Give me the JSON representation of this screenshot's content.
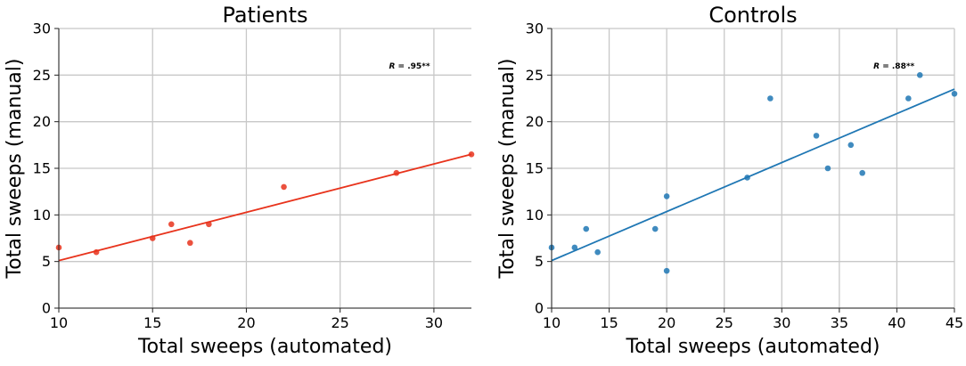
{
  "chart_data": [
    {
      "type": "scatter",
      "title": "Patients",
      "xlabel": "Total sweeps (automated)",
      "ylabel": "Total sweeps (manual)",
      "xlim": [
        10,
        32
      ],
      "ylim": [
        0,
        30
      ],
      "xticks": [
        10,
        15,
        20,
        25,
        30
      ],
      "yticks": [
        0,
        5,
        10,
        15,
        20,
        25,
        30
      ],
      "grid": true,
      "annotation": "R = .95**",
      "color": "#e8331c",
      "points": [
        {
          "x": 10,
          "y": 6.5
        },
        {
          "x": 12,
          "y": 6
        },
        {
          "x": 15,
          "y": 7.5
        },
        {
          "x": 16,
          "y": 9
        },
        {
          "x": 17,
          "y": 7
        },
        {
          "x": 18,
          "y": 9
        },
        {
          "x": 22,
          "y": 13
        },
        {
          "x": 28,
          "y": 14.5
        },
        {
          "x": 32,
          "y": 16.5
        }
      ],
      "fit_line": [
        {
          "x": 10,
          "y": 5.1
        },
        {
          "x": 32,
          "y": 16.5
        }
      ]
    },
    {
      "type": "scatter",
      "title": "Controls",
      "xlabel": "Total sweeps (automated)",
      "ylabel": "Total sweeps (manual)",
      "xlim": [
        10,
        45
      ],
      "ylim": [
        0,
        30
      ],
      "xticks": [
        10,
        15,
        20,
        25,
        30,
        35,
        40,
        45
      ],
      "yticks": [
        0,
        5,
        10,
        15,
        20,
        25,
        30
      ],
      "grid": true,
      "annotation": "R = .88**",
      "color": "#1f77b4",
      "points": [
        {
          "x": 10,
          "y": 6.5
        },
        {
          "x": 12,
          "y": 6.5
        },
        {
          "x": 13,
          "y": 8.5
        },
        {
          "x": 14,
          "y": 6
        },
        {
          "x": 19,
          "y": 8.5
        },
        {
          "x": 20,
          "y": 12
        },
        {
          "x": 20,
          "y": 4
        },
        {
          "x": 27,
          "y": 14
        },
        {
          "x": 29,
          "y": 22.5
        },
        {
          "x": 33,
          "y": 18.5
        },
        {
          "x": 34,
          "y": 15
        },
        {
          "x": 36,
          "y": 17.5
        },
        {
          "x": 37,
          "y": 14.5
        },
        {
          "x": 41,
          "y": 22.5
        },
        {
          "x": 42,
          "y": 25
        },
        {
          "x": 45,
          "y": 23
        }
      ],
      "fit_line": [
        {
          "x": 10,
          "y": 5.1
        },
        {
          "x": 45,
          "y": 23.5
        }
      ]
    }
  ]
}
